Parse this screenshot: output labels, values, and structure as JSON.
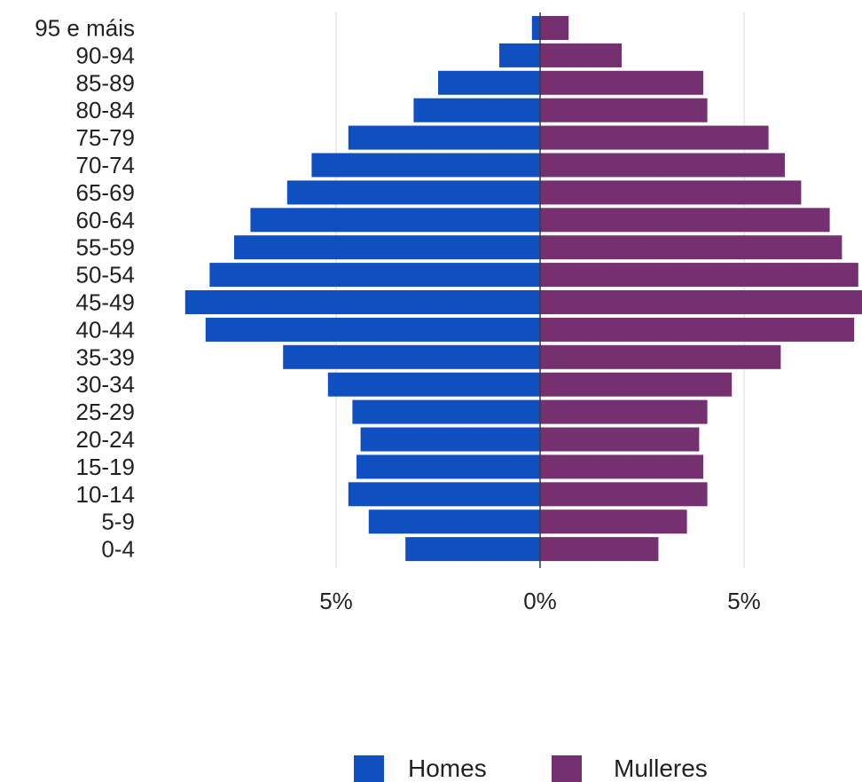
{
  "chart_data": {
    "type": "bar",
    "orientation": "horizontal",
    "layout": "population-pyramid",
    "categories": [
      "95 e máis",
      "90-94",
      "85-89",
      "80-84",
      "75-79",
      "70-74",
      "65-69",
      "60-64",
      "55-59",
      "50-54",
      "45-49",
      "40-44",
      "35-39",
      "30-34",
      "25-29",
      "20-24",
      "15-19",
      "10-14",
      "5-9",
      "0-4"
    ],
    "series": [
      {
        "name": "Homes",
        "color": "#0f4fc0",
        "side": "left",
        "values": [
          0.2,
          1.0,
          2.5,
          3.1,
          4.7,
          5.6,
          6.2,
          7.1,
          7.5,
          8.1,
          8.7,
          8.2,
          6.3,
          5.2,
          4.6,
          4.4,
          4.5,
          4.7,
          4.2,
          3.3
        ]
      },
      {
        "name": "Mulleres",
        "color": "#74306f",
        "side": "right",
        "values": [
          0.7,
          2.0,
          4.0,
          4.1,
          5.6,
          6.0,
          6.4,
          7.1,
          7.4,
          7.8,
          8.0,
          7.7,
          5.9,
          4.7,
          4.1,
          3.9,
          4.0,
          4.1,
          3.6,
          2.9
        ]
      }
    ],
    "x_ticks": [
      {
        "value": -5,
        "label": "5%"
      },
      {
        "value": 0,
        "label": "0%"
      },
      {
        "value": 5,
        "label": "5%"
      }
    ],
    "xlim": [
      -8.7,
      8.0
    ],
    "gridlines": true,
    "legend": {
      "position": "bottom"
    }
  }
}
